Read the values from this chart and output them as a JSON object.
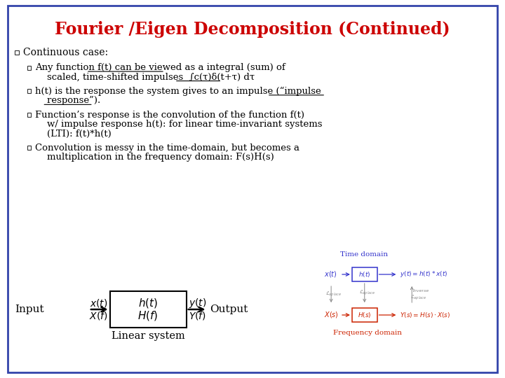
{
  "title": "Fourier /Eigen Decomposition (Continued)",
  "title_color": "#CC0000",
  "title_fontsize": 17,
  "bg_color": "#FFFFFF",
  "border_color": "#3344AA",
  "blue_color": "#3333CC",
  "red_color": "#CC2200",
  "gray_color": "#888888",
  "black": "#000000",
  "bullet1": "Continuous case:",
  "line2a_1": "Any function f(t) can be viewed as a integral (sum) of",
  "line2a_2": "    scaled, time-shifted impulses  ∫c(τ)δ(t+τ) dτ",
  "line2b_1": "h(t) is the response the system gives to an impulse (“impulse",
  "line2b_2": "    response”).",
  "line2c_1": "Function’s response is the convolution of the function f(t)",
  "line2c_2": "    w/ impulse response h(t): for linear time-invariant systems",
  "line2c_3": "    (LTI): f(t)*h(t)",
  "line2d_1": "Convolution is messy in the time-domain, but becomes a",
  "line2d_2": "    multiplication in the frequency domain: F(s)H(s)",
  "time_domain_label": "Time domain",
  "freq_domain_label": "Frequency domain",
  "diagram_input": "Input",
  "diagram_output": "Output",
  "diagram_linear": "Linear system"
}
